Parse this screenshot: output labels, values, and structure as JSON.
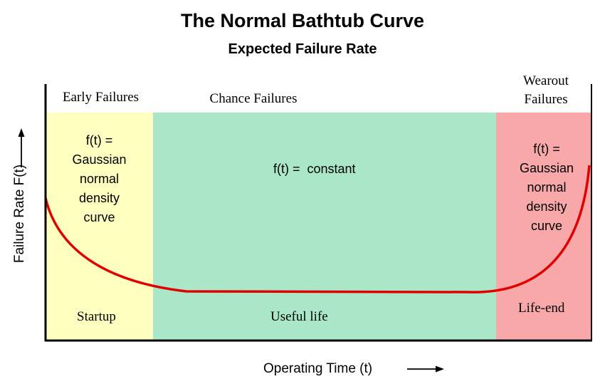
{
  "title": "The Normal Bathtub Curve",
  "subtitle": "Expected Failure Rate",
  "axes": {
    "ylabel": "Failure Rate F(t)",
    "xlabel": "Operating Time (t)"
  },
  "regions": {
    "early": {
      "header": "Early Failures",
      "formula": [
        "f(t) =",
        "Gaussian",
        "normal",
        "density",
        "curve"
      ],
      "phase": "Startup",
      "color": "#ffffc0"
    },
    "chance": {
      "header": "Chance Failures",
      "formula": "f(t) =  constant",
      "phase": "Useful life",
      "color": "#aae6c8"
    },
    "wearout": {
      "header": [
        "Wearout",
        "Failures"
      ],
      "formula": [
        "f(t) =",
        "Gaussian",
        "normal",
        "density",
        "curve"
      ],
      "phase": "Life-end",
      "color": "#f8a8a8"
    }
  },
  "curve_color": "#e00000"
}
